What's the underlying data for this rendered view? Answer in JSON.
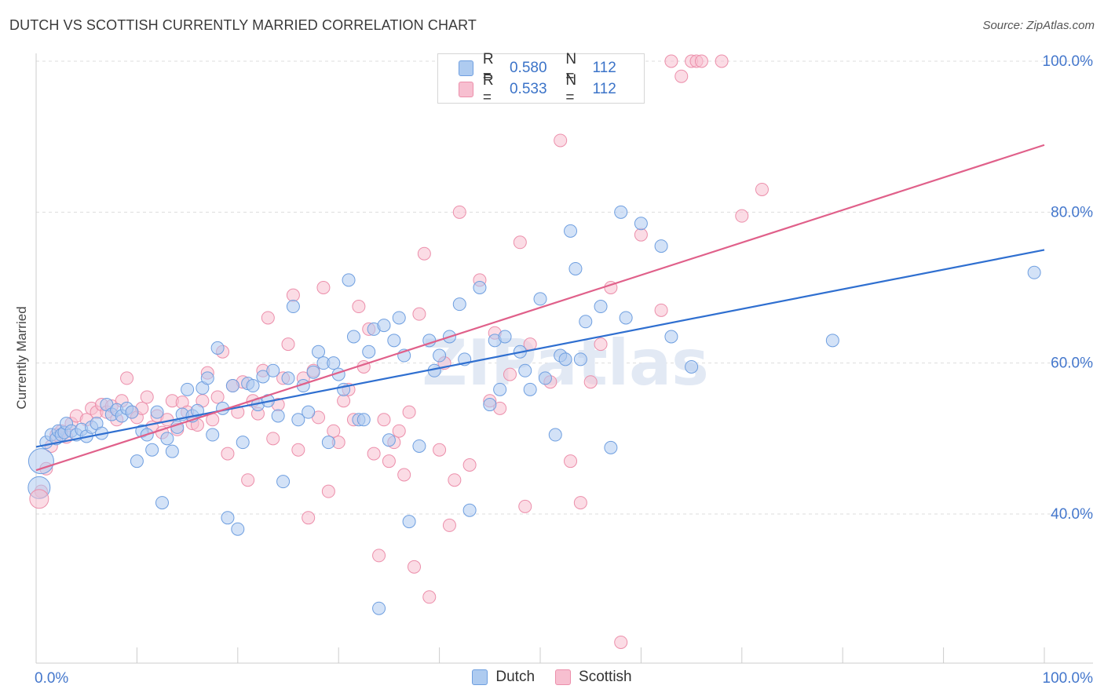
{
  "title": "DUTCH VS SCOTTISH CURRENTLY MARRIED CORRELATION CHART",
  "source": "Source: ZipAtlas.com",
  "watermark": "ZIPatlas",
  "legend": {
    "rows": [
      {
        "r_label": "R =",
        "r_value": "0.580",
        "n_label": "N =",
        "n_value": "112"
      },
      {
        "r_label": "R =",
        "r_value": "0.533",
        "n_label": "N =",
        "n_value": "112"
      }
    ]
  },
  "bottom_legend": [
    "Dutch",
    "Scottish"
  ],
  "colors": {
    "dutch_fill": "#aecbf0",
    "dutch_stroke": "#6f9fe0",
    "dutch_line": "#2f6fd0",
    "scottish_fill": "#f7bfd0",
    "scottish_stroke": "#ec8fab",
    "scottish_line": "#e0608a",
    "axis_label": "#4477cc",
    "grid": "#dddddd"
  },
  "chart_data": {
    "type": "scatter",
    "title": "DUTCH VS SCOTTISH CURRENTLY MARRIED CORRELATION CHART",
    "xlabel": "",
    "ylabel": "Currently Married",
    "x_tick_labels": [
      "0.0%",
      "100.0%"
    ],
    "y_tick_labels": [
      "40.0%",
      "60.0%",
      "80.0%",
      "100.0%"
    ],
    "xlim": [
      0,
      100
    ],
    "ylim": [
      20,
      102
    ],
    "y_ticks": [
      40,
      60,
      80,
      100
    ],
    "grid": true,
    "legend_position": "top-center",
    "series": [
      {
        "name": "Dutch",
        "R": 0.58,
        "N": 112,
        "trend": {
          "x": [
            0,
            100
          ],
          "y": [
            48.9,
            75.0
          ]
        },
        "points": [
          [
            1,
            49.5
          ],
          [
            1.5,
            50.5
          ],
          [
            2,
            50
          ],
          [
            2.2,
            51
          ],
          [
            2.5,
            50.5
          ],
          [
            2.8,
            50.8
          ],
          [
            3,
            52
          ],
          [
            3.5,
            51
          ],
          [
            4,
            50.5
          ],
          [
            4.5,
            51.2
          ],
          [
            5,
            50.3
          ],
          [
            5.5,
            51.5
          ],
          [
            6,
            52
          ],
          [
            6.5,
            50.7
          ],
          [
            7,
            54.5
          ],
          [
            7.5,
            53.2
          ],
          [
            8,
            53.8
          ],
          [
            8.5,
            53
          ],
          [
            9,
            54
          ],
          [
            9.5,
            53.5
          ],
          [
            10,
            47
          ],
          [
            10.5,
            51
          ],
          [
            11,
            50.5
          ],
          [
            11.5,
            48.5
          ],
          [
            12,
            53.5
          ],
          [
            12.5,
            41.5
          ],
          [
            13,
            50
          ],
          [
            13.5,
            48.3
          ],
          [
            14,
            51.5
          ],
          [
            14.5,
            53.2
          ],
          [
            15,
            56.5
          ],
          [
            15.5,
            53
          ],
          [
            16,
            53.7
          ],
          [
            16.5,
            56.7
          ],
          [
            17,
            58
          ],
          [
            17.5,
            50.5
          ],
          [
            18,
            62
          ],
          [
            18.5,
            54
          ],
          [
            19,
            39.5
          ],
          [
            19.5,
            57
          ],
          [
            20,
            38
          ],
          [
            20.5,
            49.5
          ],
          [
            21,
            57.3
          ],
          [
            21.5,
            57
          ],
          [
            22,
            54.5
          ],
          [
            22.5,
            58.2
          ],
          [
            23,
            55
          ],
          [
            23.5,
            59
          ],
          [
            24,
            53
          ],
          [
            24.5,
            44.3
          ],
          [
            25,
            58
          ],
          [
            25.5,
            67.5
          ],
          [
            26,
            52.5
          ],
          [
            26.5,
            57
          ],
          [
            27,
            53.5
          ],
          [
            27.5,
            58.8
          ],
          [
            28,
            61.5
          ],
          [
            28.5,
            60
          ],
          [
            29,
            49.5
          ],
          [
            29.5,
            60
          ],
          [
            30,
            58.5
          ],
          [
            30.5,
            56.5
          ],
          [
            31,
            71
          ],
          [
            31.5,
            63.5
          ],
          [
            32,
            52.5
          ],
          [
            32.5,
            52.5
          ],
          [
            33,
            61.5
          ],
          [
            33.5,
            64.5
          ],
          [
            34,
            27.5
          ],
          [
            34.5,
            65
          ],
          [
            35,
            49.8
          ],
          [
            35.5,
            63
          ],
          [
            36,
            66
          ],
          [
            36.5,
            61
          ],
          [
            37,
            39
          ],
          [
            38,
            49
          ],
          [
            39,
            63
          ],
          [
            39.5,
            59
          ],
          [
            40,
            61
          ],
          [
            41,
            63.5
          ],
          [
            42,
            67.8
          ],
          [
            42.5,
            60.5
          ],
          [
            43,
            40.5
          ],
          [
            44,
            70
          ],
          [
            45,
            54.5
          ],
          [
            45.5,
            63
          ],
          [
            46,
            56.5
          ],
          [
            46.5,
            63.5
          ],
          [
            48,
            61.5
          ],
          [
            48.5,
            59
          ],
          [
            49,
            56.5
          ],
          [
            50,
            68.5
          ],
          [
            50.5,
            58
          ],
          [
            51.5,
            50.5
          ],
          [
            52,
            61
          ],
          [
            52.5,
            60.5
          ],
          [
            53,
            77.5
          ],
          [
            53.5,
            72.5
          ],
          [
            54,
            60.5
          ],
          [
            54.5,
            65.5
          ],
          [
            56,
            67.5
          ],
          [
            57,
            48.8
          ],
          [
            58,
            80
          ],
          [
            58.5,
            66
          ],
          [
            60,
            78.5
          ],
          [
            62,
            75.5
          ],
          [
            63,
            63.5
          ],
          [
            65,
            59.5
          ],
          [
            79,
            63
          ],
          [
            99,
            72
          ]
        ]
      },
      {
        "name": "Scottish",
        "R": 0.533,
        "N": 112,
        "trend": {
          "x": [
            0,
            100
          ],
          "y": [
            45.8,
            88.9
          ]
        },
        "points": [
          [
            0.5,
            43
          ],
          [
            1,
            46
          ],
          [
            1.5,
            49
          ],
          [
            2,
            50.5
          ],
          [
            2.5,
            51
          ],
          [
            3,
            50.2
          ],
          [
            3.5,
            52
          ],
          [
            4,
            53
          ],
          [
            5,
            52.5
          ],
          [
            5.5,
            54
          ],
          [
            6,
            53.5
          ],
          [
            6.5,
            54.5
          ],
          [
            7,
            53.5
          ],
          [
            7.5,
            54.3
          ],
          [
            8,
            52.5
          ],
          [
            8.5,
            55
          ],
          [
            9,
            58
          ],
          [
            9.5,
            53.5
          ],
          [
            10,
            52.8
          ],
          [
            10.5,
            54
          ],
          [
            11,
            55.5
          ],
          [
            11.5,
            51.5
          ],
          [
            12,
            53
          ],
          [
            12.5,
            50.8
          ],
          [
            13,
            52.5
          ],
          [
            13.5,
            55
          ],
          [
            14,
            51.2
          ],
          [
            14.5,
            54.8
          ],
          [
            15,
            53.5
          ],
          [
            15.5,
            52
          ],
          [
            16,
            51.8
          ],
          [
            16.5,
            55
          ],
          [
            17,
            58.7
          ],
          [
            17.5,
            52.5
          ],
          [
            18,
            55.5
          ],
          [
            18.5,
            61.5
          ],
          [
            19,
            48
          ],
          [
            19.5,
            57
          ],
          [
            20,
            53.5
          ],
          [
            20.5,
            57.5
          ],
          [
            21,
            44.5
          ],
          [
            21.5,
            55
          ],
          [
            22,
            53.3
          ],
          [
            22.5,
            59
          ],
          [
            23,
            66
          ],
          [
            23.5,
            50
          ],
          [
            24,
            54.5
          ],
          [
            24.5,
            58
          ],
          [
            25,
            62.5
          ],
          [
            25.5,
            69
          ],
          [
            26,
            48.5
          ],
          [
            26.5,
            58
          ],
          [
            27,
            39.5
          ],
          [
            27.5,
            59
          ],
          [
            28,
            52.8
          ],
          [
            28.5,
            70
          ],
          [
            29,
            43
          ],
          [
            29.5,
            51
          ],
          [
            30,
            49.5
          ],
          [
            30.5,
            55
          ],
          [
            31,
            56.5
          ],
          [
            31.5,
            52.5
          ],
          [
            32,
            67.5
          ],
          [
            32.5,
            59.5
          ],
          [
            33,
            64.5
          ],
          [
            33.5,
            48
          ],
          [
            34,
            34.5
          ],
          [
            34.5,
            52.5
          ],
          [
            35,
            47
          ],
          [
            35.5,
            49.5
          ],
          [
            36,
            51
          ],
          [
            36.5,
            45.2
          ],
          [
            37,
            53.5
          ],
          [
            37.5,
            33
          ],
          [
            38,
            66.5
          ],
          [
            38.5,
            74.5
          ],
          [
            39,
            29
          ],
          [
            40,
            48.5
          ],
          [
            40.5,
            60
          ],
          [
            41,
            38.5
          ],
          [
            41.5,
            44.5
          ],
          [
            42,
            80
          ],
          [
            43,
            46.5
          ],
          [
            44,
            71
          ],
          [
            45,
            55
          ],
          [
            45.5,
            64
          ],
          [
            46,
            54
          ],
          [
            47,
            58.5
          ],
          [
            48,
            76
          ],
          [
            48.5,
            41
          ],
          [
            49,
            62.5
          ],
          [
            50,
            97.5
          ],
          [
            51,
            57.5
          ],
          [
            52,
            89.5
          ],
          [
            53,
            47
          ],
          [
            54,
            41.5
          ],
          [
            55,
            57.5
          ],
          [
            56,
            62.5
          ],
          [
            57,
            70
          ],
          [
            58,
            23
          ],
          [
            60,
            77
          ],
          [
            62,
            67
          ],
          [
            63,
            100
          ],
          [
            64,
            98
          ],
          [
            65,
            100
          ],
          [
            65.5,
            100
          ],
          [
            66,
            100
          ],
          [
            68,
            100
          ],
          [
            70,
            79.5
          ],
          [
            72,
            83
          ]
        ]
      }
    ]
  }
}
